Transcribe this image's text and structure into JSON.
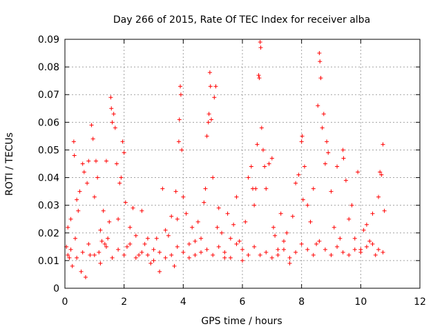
{
  "chart_data": {
    "type": "scatter",
    "title": "Day 266 of 2015, Rate Of TEC Index for receiver alba",
    "xlabel": "GPS time / hours",
    "ylabel": "ROTI / TECUs",
    "xlim": [
      0,
      12
    ],
    "ylim": [
      0,
      0.09
    ],
    "x_ticks": [
      "0",
      "2",
      "4",
      "6",
      "8",
      "10",
      "12"
    ],
    "y_ticks": [
      "0",
      "0.01",
      "0.02",
      "0.03",
      "0.04",
      "0.05",
      "0.06",
      "0.07",
      "0.08",
      "0.09"
    ],
    "grid": true,
    "marker": "+",
    "color": "#ff0000",
    "series": [
      {
        "points": [
          [
            0.05,
            0.015
          ],
          [
            0.1,
            0.022
          ],
          [
            0.15,
            0.011
          ],
          [
            0.2,
            0.025
          ],
          [
            0.25,
            0.008
          ],
          [
            0.3,
            0.053
          ],
          [
            0.32,
            0.048
          ],
          [
            0.35,
            0.018
          ],
          [
            0.4,
            0.032
          ],
          [
            0.45,
            0.028
          ],
          [
            0.5,
            0.035
          ],
          [
            0.55,
            0.006
          ],
          [
            0.6,
            0.045
          ],
          [
            0.65,
            0.042
          ],
          [
            0.7,
            0.004
          ],
          [
            0.75,
            0.038
          ],
          [
            0.8,
            0.046
          ],
          [
            0.85,
            0.012
          ],
          [
            0.9,
            0.059
          ],
          [
            0.95,
            0.054
          ],
          [
            1.0,
            0.033
          ],
          [
            1.05,
            0.046
          ],
          [
            1.1,
            0.04
          ],
          [
            1.15,
            0.013
          ],
          [
            1.2,
            0.021
          ],
          [
            1.25,
            0.017
          ],
          [
            1.3,
            0.028
          ],
          [
            1.35,
            0.016
          ],
          [
            1.4,
            0.046
          ],
          [
            1.45,
            0.018
          ],
          [
            1.5,
            0.024
          ],
          [
            1.55,
            0.069
          ],
          [
            1.57,
            0.065
          ],
          [
            1.6,
            0.06
          ],
          [
            1.65,
            0.063
          ],
          [
            1.7,
            0.058
          ],
          [
            1.75,
            0.045
          ],
          [
            1.8,
            0.025
          ],
          [
            1.85,
            0.038
          ],
          [
            1.9,
            0.04
          ],
          [
            1.95,
            0.053
          ],
          [
            2.0,
            0.049
          ],
          [
            2.05,
            0.031
          ],
          [
            2.1,
            0.015
          ],
          [
            2.2,
            0.022
          ],
          [
            2.3,
            0.029
          ],
          [
            2.4,
            0.019
          ],
          [
            2.5,
            0.012
          ],
          [
            2.6,
            0.028
          ],
          [
            2.7,
            0.016
          ],
          [
            2.8,
            0.018
          ],
          [
            2.9,
            0.009
          ],
          [
            3.0,
            0.014
          ],
          [
            3.1,
            0.018
          ],
          [
            3.2,
            0.006
          ],
          [
            3.3,
            0.036
          ],
          [
            3.4,
            0.021
          ],
          [
            3.5,
            0.019
          ],
          [
            3.6,
            0.026
          ],
          [
            3.7,
            0.008
          ],
          [
            3.75,
            0.035
          ],
          [
            3.8,
            0.025
          ],
          [
            3.85,
            0.053
          ],
          [
            3.87,
            0.061
          ],
          [
            3.9,
            0.073
          ],
          [
            3.92,
            0.07
          ],
          [
            3.95,
            0.05
          ],
          [
            4.0,
            0.033
          ],
          [
            4.1,
            0.027
          ],
          [
            4.2,
            0.016
          ],
          [
            4.3,
            0.022
          ],
          [
            4.4,
            0.012
          ],
          [
            4.5,
            0.024
          ],
          [
            4.6,
            0.018
          ],
          [
            4.7,
            0.031
          ],
          [
            4.75,
            0.036
          ],
          [
            4.8,
            0.055
          ],
          [
            4.85,
            0.06
          ],
          [
            4.87,
            0.063
          ],
          [
            4.9,
            0.078
          ],
          [
            4.92,
            0.073
          ],
          [
            4.95,
            0.061
          ],
          [
            5.0,
            0.04
          ],
          [
            5.05,
            0.069
          ],
          [
            5.1,
            0.073
          ],
          [
            5.15,
            0.022
          ],
          [
            5.2,
            0.029
          ],
          [
            5.3,
            0.02
          ],
          [
            5.4,
            0.011
          ],
          [
            5.5,
            0.027
          ],
          [
            5.6,
            0.018
          ],
          [
            5.7,
            0.023
          ],
          [
            5.8,
            0.033
          ],
          [
            5.9,
            0.017
          ],
          [
            6.0,
            0.01
          ],
          [
            6.1,
            0.024
          ],
          [
            6.2,
            0.04
          ],
          [
            6.3,
            0.044
          ],
          [
            6.35,
            0.036
          ],
          [
            6.4,
            0.03
          ],
          [
            6.45,
            0.036
          ],
          [
            6.5,
            0.052
          ],
          [
            6.55,
            0.077
          ],
          [
            6.57,
            0.076
          ],
          [
            6.6,
            0.089
          ],
          [
            6.62,
            0.087
          ],
          [
            6.65,
            0.058
          ],
          [
            6.7,
            0.05
          ],
          [
            6.75,
            0.044
          ],
          [
            6.8,
            0.036
          ],
          [
            6.9,
            0.045
          ],
          [
            7.0,
            0.047
          ],
          [
            7.05,
            0.022
          ],
          [
            7.1,
            0.019
          ],
          [
            7.2,
            0.014
          ],
          [
            7.3,
            0.027
          ],
          [
            7.4,
            0.017
          ],
          [
            7.5,
            0.02
          ],
          [
            7.6,
            0.009
          ],
          [
            7.7,
            0.026
          ],
          [
            7.8,
            0.038
          ],
          [
            7.9,
            0.041
          ],
          [
            8.0,
            0.053
          ],
          [
            8.02,
            0.055
          ],
          [
            8.05,
            0.032
          ],
          [
            8.1,
            0.044
          ],
          [
            8.2,
            0.03
          ],
          [
            8.3,
            0.024
          ],
          [
            8.4,
            0.036
          ],
          [
            8.5,
            0.016
          ],
          [
            8.55,
            0.066
          ],
          [
            8.6,
            0.085
          ],
          [
            8.62,
            0.082
          ],
          [
            8.65,
            0.076
          ],
          [
            8.7,
            0.058
          ],
          [
            8.75,
            0.063
          ],
          [
            8.8,
            0.045
          ],
          [
            8.85,
            0.053
          ],
          [
            8.9,
            0.049
          ],
          [
            9.0,
            0.035
          ],
          [
            9.1,
            0.022
          ],
          [
            9.2,
            0.044
          ],
          [
            9.3,
            0.018
          ],
          [
            9.4,
            0.05
          ],
          [
            9.42,
            0.047
          ],
          [
            9.5,
            0.039
          ],
          [
            9.6,
            0.025
          ],
          [
            9.7,
            0.03
          ],
          [
            9.8,
            0.018
          ],
          [
            9.9,
            0.042
          ],
          [
            10.0,
            0.014
          ],
          [
            10.1,
            0.021
          ],
          [
            10.2,
            0.023
          ],
          [
            10.3,
            0.017
          ],
          [
            10.4,
            0.027
          ],
          [
            10.5,
            0.012
          ],
          [
            10.6,
            0.033
          ],
          [
            10.65,
            0.042
          ],
          [
            10.7,
            0.041
          ],
          [
            10.75,
            0.052
          ],
          [
            10.8,
            0.028
          ],
          [
            0.1,
            0.012
          ],
          [
            0.2,
            0.014
          ],
          [
            0.4,
            0.011
          ],
          [
            0.6,
            0.013
          ],
          [
            0.8,
            0.016
          ],
          [
            1.0,
            0.012
          ],
          [
            1.2,
            0.009
          ],
          [
            1.4,
            0.015
          ],
          [
            1.6,
            0.011
          ],
          [
            1.8,
            0.014
          ],
          [
            2.0,
            0.012
          ],
          [
            2.2,
            0.016
          ],
          [
            2.4,
            0.011
          ],
          [
            2.6,
            0.013
          ],
          [
            2.8,
            0.012
          ],
          [
            3.0,
            0.01
          ],
          [
            3.2,
            0.013
          ],
          [
            3.4,
            0.011
          ],
          [
            3.6,
            0.012
          ],
          [
            3.8,
            0.015
          ],
          [
            4.0,
            0.013
          ],
          [
            4.2,
            0.011
          ],
          [
            4.4,
            0.017
          ],
          [
            4.6,
            0.013
          ],
          [
            4.8,
            0.014
          ],
          [
            5.0,
            0.012
          ],
          [
            5.2,
            0.015
          ],
          [
            5.4,
            0.013
          ],
          [
            5.6,
            0.011
          ],
          [
            5.8,
            0.016
          ],
          [
            6.0,
            0.014
          ],
          [
            6.2,
            0.012
          ],
          [
            6.4,
            0.015
          ],
          [
            6.6,
            0.012
          ],
          [
            6.8,
            0.013
          ],
          [
            7.0,
            0.011
          ],
          [
            7.2,
            0.012
          ],
          [
            7.4,
            0.014
          ],
          [
            7.6,
            0.011
          ],
          [
            7.8,
            0.013
          ],
          [
            8.0,
            0.016
          ],
          [
            8.2,
            0.014
          ],
          [
            8.4,
            0.012
          ],
          [
            8.6,
            0.017
          ],
          [
            8.8,
            0.014
          ],
          [
            9.0,
            0.012
          ],
          [
            9.2,
            0.015
          ],
          [
            9.4,
            0.013
          ],
          [
            9.6,
            0.012
          ],
          [
            9.8,
            0.014
          ],
          [
            10.0,
            0.013
          ],
          [
            10.2,
            0.015
          ],
          [
            10.4,
            0.016
          ],
          [
            10.6,
            0.014
          ],
          [
            10.75,
            0.013
          ]
        ]
      }
    ]
  }
}
